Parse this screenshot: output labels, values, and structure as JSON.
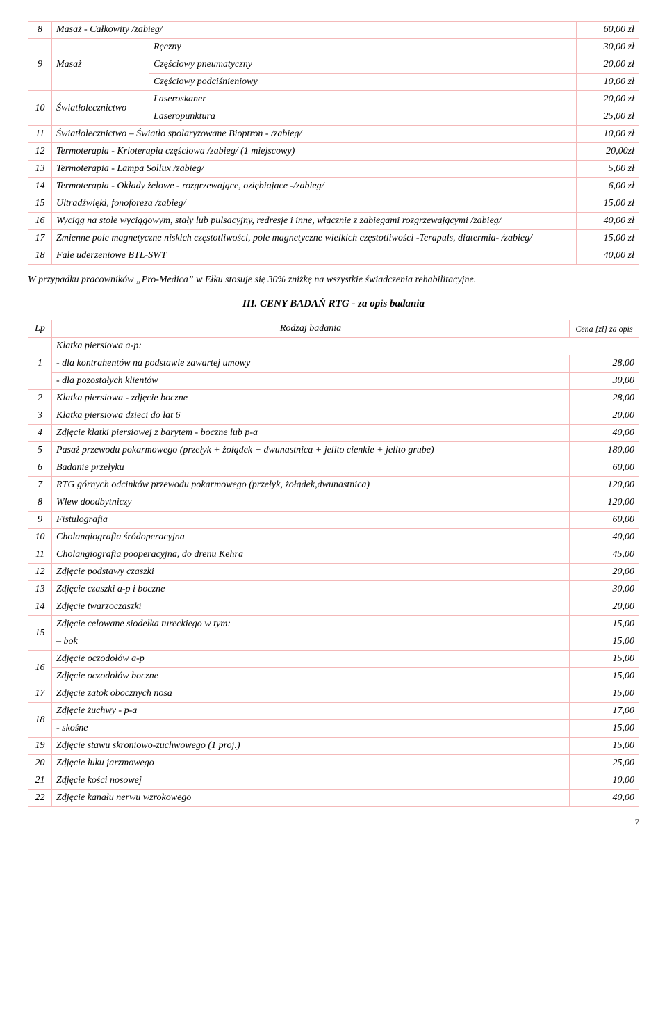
{
  "table1": {
    "rows": [
      {
        "n": "8",
        "desc": "Masaż - Całkowity /zabieg/",
        "price": "60,00 zł",
        "rowspan": 1,
        "sub": null
      },
      {
        "n": "9",
        "desc": "Masaż",
        "price": null,
        "sub": [
          {
            "label": "Ręczny",
            "price": "30,00 zł"
          },
          {
            "label": "Częściowy pneumatyczny",
            "price": "20,00 zł"
          },
          {
            "label": "Częściowy podciśnieniowy",
            "price": "10,00 zł"
          }
        ]
      },
      {
        "n": "10",
        "desc": "Światłolecznictwo",
        "price": null,
        "sub": [
          {
            "label": "Laseroskaner",
            "price": "20,00 zł"
          },
          {
            "label": "Laseropunktura",
            "price": "25,00 zł"
          }
        ]
      },
      {
        "n": "11",
        "desc": "Światłolecznictwo –\nŚwiatło spolaryzowane Bioptron - /zabieg/",
        "price": "10,00 zł"
      },
      {
        "n": "12",
        "desc": "Termoterapia - Krioterapia częściowa /zabieg/ (1 miejscowy)",
        "price": "20,00zł"
      },
      {
        "n": "13",
        "desc": "Termoterapia - Lampa Sollux /zabieg/",
        "price": "5,00 zł"
      },
      {
        "n": "14",
        "desc": "Termoterapia - Okłady żelowe - rozgrzewające, oziębiające -/zabieg/",
        "price": "6,00 zł"
      },
      {
        "n": "15",
        "desc": "Ultradźwięki, fonoforeza /zabieg/",
        "price": "15,00 zł"
      },
      {
        "n": "16",
        "desc": "Wyciąg na stole wyciągowym, stały lub pulsacyjny, redresje i inne, włącznie z zabiegami rozgrzewającymi /zabieg/",
        "price": "40,00 zł"
      },
      {
        "n": "17",
        "desc": "Zmienne pole magnetyczne niskich częstotliwości, pole magnetyczne wielkich częstotliwości -Terapuls, diatermia- /zabieg/",
        "price": "15,00 zł"
      },
      {
        "n": "18",
        "desc": "Fale uderzeniowe BTL-SWT",
        "price": "40,00 zł"
      }
    ]
  },
  "note": "W przypadku pracowników „Pro-Medica” w Ełku stosuje się 30% zniżkę na wszystkie świadczenia rehabilitacyjne.",
  "section_title": "III. CENY BADAŃ RTG  - za opis badania",
  "table2": {
    "header": {
      "lp": "Lp",
      "rodzaj": "Rodzaj badania",
      "cena": "Cena [zł] za opis"
    },
    "rows": [
      {
        "n": "1",
        "sub": [
          {
            "label": "Klatka piersiowa a-p:",
            "price": ""
          },
          {
            "label": "- dla kontrahentów na podstawie zawartej umowy",
            "price": "28,00"
          },
          {
            "label": "- dla pozostałych klientów",
            "price": "30,00"
          }
        ]
      },
      {
        "n": "2",
        "desc": "Klatka piersiowa - zdjęcie boczne",
        "price": "28,00"
      },
      {
        "n": "3",
        "desc": "Klatka piersiowa dzieci do lat 6",
        "price": "20,00"
      },
      {
        "n": "4",
        "desc": "Zdjęcie klatki piersiowej z barytem - boczne lub p-a",
        "price": "40,00"
      },
      {
        "n": "5",
        "desc": "Pasaż przewodu pokarmowego (przełyk + żołądek + dwunastnica + jelito cienkie + jelito grube)",
        "price": "180,00"
      },
      {
        "n": "6",
        "desc": "Badanie przełyku",
        "price": "60,00"
      },
      {
        "n": "7",
        "desc": "RTG górnych odcinków przewodu pokarmowego (przełyk, żołądek,dwunastnica)",
        "price": "120,00"
      },
      {
        "n": "8",
        "desc": "Wlew doodbytniczy",
        "price": "120,00"
      },
      {
        "n": "9",
        "desc": "Fistulografia",
        "price": "60,00"
      },
      {
        "n": "10",
        "desc": "Cholangiografia śródoperacyjna",
        "price": "40,00"
      },
      {
        "n": "11",
        "desc": "Cholangiografia pooperacyjna, do drenu Kehra",
        "price": "45,00"
      },
      {
        "n": "12",
        "desc": "Zdjęcie podstawy czaszki",
        "price": "20,00"
      },
      {
        "n": "13",
        "desc": "Zdjęcie czaszki a-p i boczne",
        "price": "30,00"
      },
      {
        "n": "14",
        "desc": "Zdjęcie twarzoczaszki",
        "price": "20,00"
      },
      {
        "n": "15",
        "sub": [
          {
            "label": "Zdjęcie celowane siodełka tureckiego w tym:",
            "price": "15,00"
          },
          {
            "label": "– bok",
            "price": "15,00"
          }
        ]
      },
      {
        "n": "16",
        "sub": [
          {
            "label": "Zdjęcie oczodołów a-p",
            "price": "15,00"
          },
          {
            "label": "Zdjęcie oczodołów boczne",
            "price": "15,00"
          }
        ]
      },
      {
        "n": "17",
        "desc": "Zdjęcie zatok obocznych nosa",
        "price": "15,00"
      },
      {
        "n": "18",
        "sub": [
          {
            "label": "Zdjęcie żuchwy - p-a",
            "price": "17,00"
          },
          {
            "label": "- skośne",
            "price": "15,00"
          }
        ]
      },
      {
        "n": "19",
        "desc": "Zdjęcie stawu skroniowo-żuchwowego (1 proj.)",
        "price": "15,00"
      },
      {
        "n": "20",
        "desc": "Zdjęcie łuku jarzmowego",
        "price": "25,00"
      },
      {
        "n": "21",
        "desc": "Zdjęcie kości nosowej",
        "price": "10,00"
      },
      {
        "n": "22",
        "desc": "Zdjęcie kanału nerwu wzrokowego",
        "price": "40,00"
      }
    ]
  },
  "page_number": "7"
}
